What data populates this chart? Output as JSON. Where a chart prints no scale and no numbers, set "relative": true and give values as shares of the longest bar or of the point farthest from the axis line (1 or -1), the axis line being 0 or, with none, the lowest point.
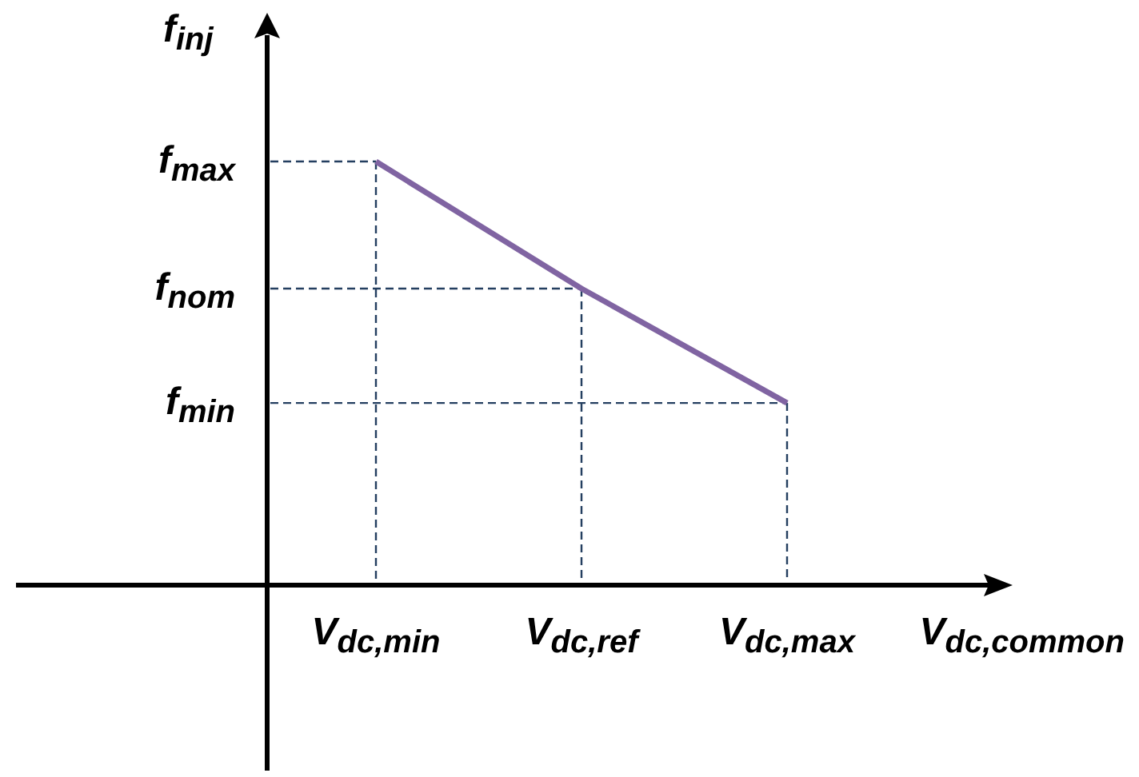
{
  "chart_data": {
    "type": "line",
    "xlabel": "V$_{dc,common}$",
    "ylabel": "f$_{inj}$",
    "categories": [
      "V$_{dc,min}$",
      "V$_{dc,ref}$",
      "V$_{dc,max}$"
    ],
    "relative": true,
    "series": [
      {
        "color": "#8064a2",
        "values": [
          1,
          0.7,
          0.43
        ]
      }
    ],
    "ref_lines": [
      {
        "axis": "y",
        "value": 1,
        "label": "f$_{max}$",
        "color": "#243f60",
        "line_style": "dashed"
      },
      {
        "axis": "y",
        "value": 0.7,
        "label": "f$_{nom}$",
        "color": "#243f60",
        "line_style": "dashed"
      },
      {
        "axis": "y",
        "value": 0.43,
        "label": "f$_{min}$",
        "color": "#243f60",
        "line_style": "dashed"
      },
      {
        "axis": "x",
        "value": "V$_{dc,min}$",
        "color": "#243f60",
        "line_style": "dashed"
      },
      {
        "axis": "x",
        "value": "V$_{dc,ref}$",
        "color": "#243f60",
        "line_style": "dashed"
      },
      {
        "axis": "x",
        "value": "V$_{dc,max}$",
        "color": "#243f60",
        "line_style": "dashed"
      }
    ]
  }
}
